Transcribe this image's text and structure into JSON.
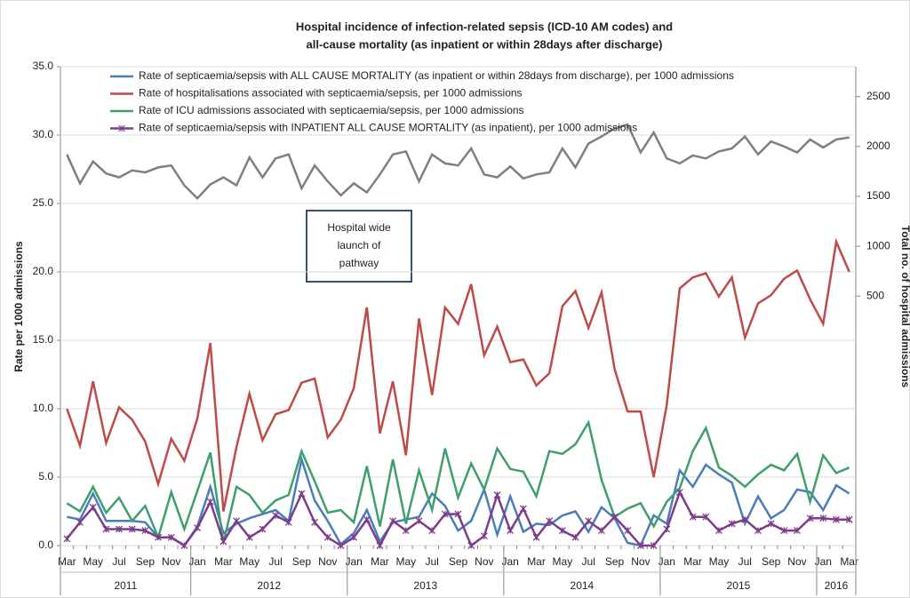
{
  "chart_data": {
    "type": "line",
    "title": [
      "Hospital incidence of infection-related sepsis (ICD-10 AM codes) and",
      "all-cause mortality (as inpatient or within 28days after discharge)"
    ],
    "y_label": "Rate per 1000 admissions",
    "y2_label": "Total no. of hospital admissions",
    "annotation": [
      "Hospital wide",
      "launch of",
      "pathway"
    ],
    "categories": [
      "Mar",
      null,
      "May",
      null,
      "Jul",
      null,
      "Sep",
      null,
      "Nov",
      null,
      "Jan",
      null,
      "Mar",
      null,
      "May",
      null,
      "Jul",
      null,
      "Sep",
      null,
      "Nov",
      null,
      "Jan",
      null,
      "Mar",
      null,
      "May",
      null,
      "Jul",
      null,
      "Sep",
      null,
      "Nov",
      null,
      "Jan",
      null,
      "Mar",
      null,
      "May",
      null,
      "Jul",
      null,
      "Sep",
      null,
      "Nov",
      null,
      "Jan",
      null,
      "Mar",
      null,
      "May",
      null,
      "Jul",
      null,
      "Sep",
      null,
      "Nov",
      null,
      "Jan",
      null,
      "Mar"
    ],
    "years": [
      "2011",
      "2012",
      "2013",
      "2014",
      "2015",
      "2016"
    ],
    "ylim": [
      0,
      35
    ],
    "yticks": [
      {
        "value": 0,
        "label": "0.0"
      },
      {
        "value": 5,
        "label": "5.0"
      },
      {
        "value": 10,
        "label": "10.0"
      },
      {
        "value": 15,
        "label": "15.0"
      },
      {
        "value": 20,
        "label": "20.0"
      },
      {
        "value": 25,
        "label": "25.0"
      },
      {
        "value": 30,
        "label": "30.0"
      },
      {
        "value": 35,
        "label": "35.0"
      }
    ],
    "y2lim": [
      -2000,
      2800
    ],
    "y2ticks": [
      500,
      1000,
      1500,
      2000,
      2500
    ],
    "series": [
      {
        "name": "Rate of septicaemia/sepsis with ALL CAUSE MORTALITY (as inpatient or within 28days from discharge), per 1000 admissions",
        "color": "#4a7ebb",
        "values": [
          2.1,
          1.9,
          3.8,
          1.8,
          1.8,
          1.8,
          1.7,
          0.6,
          0.6,
          0.0,
          1.4,
          4.3,
          0.9,
          1.6,
          2.0,
          2.3,
          2.6,
          1.8,
          6.3,
          3.3,
          1.8,
          0.1,
          0.9,
          2.6,
          0.3,
          1.7,
          1.9,
          2.1,
          3.8,
          2.9,
          1.1,
          1.8,
          4.1,
          0.8,
          3.6,
          1.0,
          1.6,
          1.5,
          2.2,
          2.5,
          1.0,
          2.8,
          2.0,
          0.2,
          0.0,
          2.2,
          1.6,
          5.5,
          4.3,
          5.9,
          5.2,
          4.6,
          1.6,
          3.6,
          2.0,
          2.6,
          4.1,
          3.9,
          2.6,
          4.4,
          3.8
        ]
      },
      {
        "name": "Rate of hospitalisations associated with septicaemia/sepsis, per 1000 admissions",
        "color": "#be4b48",
        "values": [
          10.0,
          7.3,
          12.0,
          7.5,
          10.1,
          9.2,
          7.6,
          4.5,
          7.8,
          6.2,
          9.3,
          14.8,
          2.5,
          7.2,
          11.1,
          7.7,
          9.6,
          9.9,
          11.9,
          12.2,
          7.9,
          9.2,
          11.5,
          17.4,
          8.2,
          12.0,
          6.6,
          16.6,
          11.0,
          17.4,
          16.2,
          19.1,
          13.9,
          16.0,
          13.4,
          13.6,
          11.7,
          12.6,
          17.5,
          18.6,
          15.9,
          18.5,
          12.9,
          9.8,
          9.8,
          5.0,
          10.3,
          18.8,
          19.6,
          19.9,
          18.2,
          19.6,
          15.2,
          17.7,
          18.3,
          19.5,
          20.1,
          18.0,
          16.2,
          22.2,
          20.0
        ]
      },
      {
        "name": "Rate of ICU admissions associated with septicaemia/sepsis, per 1000 admissions",
        "color": "#3f9f6a",
        "values": [
          3.1,
          2.5,
          4.3,
          2.4,
          3.5,
          1.8,
          2.9,
          0.6,
          3.9,
          1.2,
          4.0,
          6.8,
          0.2,
          4.3,
          3.7,
          2.4,
          3.3,
          3.7,
          6.9,
          4.7,
          2.4,
          2.6,
          1.7,
          5.8,
          1.4,
          6.3,
          1.6,
          5.5,
          2.6,
          7.1,
          3.5,
          6.0,
          4.1,
          7.1,
          5.6,
          5.4,
          3.6,
          6.9,
          6.7,
          7.4,
          9.0,
          4.8,
          2.1,
          2.7,
          3.1,
          1.4,
          3.2,
          4.2,
          6.9,
          8.6,
          5.7,
          5.1,
          4.3,
          5.2,
          5.9,
          5.5,
          6.7,
          3.2,
          6.6,
          5.3,
          5.7
        ]
      },
      {
        "name": "Rate of septicaemia/sepsis with INPATIENT ALL CAUSE MORTALITY (as inpatient), per 1000 admissions",
        "color": "#7d3c8c",
        "marker": "star",
        "values": [
          0.5,
          1.7,
          2.8,
          1.2,
          1.2,
          1.2,
          1.1,
          0.6,
          0.6,
          0.0,
          1.3,
          3.2,
          0.3,
          1.8,
          0.6,
          1.2,
          2.2,
          1.7,
          3.8,
          1.7,
          0.6,
          0.0,
          0.6,
          1.9,
          0.0,
          1.8,
          1.1,
          1.8,
          1.1,
          2.3,
          2.3,
          0.0,
          0.7,
          3.7,
          1.1,
          2.7,
          0.6,
          1.8,
          1.1,
          0.6,
          1.8,
          1.1,
          2.1,
          1.1,
          0.0,
          0.0,
          1.2,
          3.9,
          2.1,
          2.1,
          1.1,
          1.6,
          1.9,
          1.1,
          1.6,
          1.1,
          1.1,
          2.0,
          2.0,
          1.9,
          1.9
        ]
      },
      {
        "color": "#7f7f7f",
        "axis": "y2",
        "values": [
          1920,
          1630,
          1850,
          1730,
          1690,
          1760,
          1740,
          1790,
          1810,
          1610,
          1480,
          1620,
          1690,
          1610,
          1890,
          1690,
          1880,
          1920,
          1580,
          1810,
          1650,
          1510,
          1630,
          1540,
          1720,
          1920,
          1950,
          1650,
          1920,
          1830,
          1810,
          1980,
          1720,
          1690,
          1800,
          1680,
          1720,
          1740,
          1980,
          1790,
          2030,
          2100,
          2180,
          2220,
          1940,
          2140,
          1880,
          1830,
          1910,
          1880,
          1950,
          1980,
          2100,
          1920,
          2050,
          2000,
          1940,
          2070,
          1990,
          2070,
          2090
        ]
      }
    ]
  }
}
